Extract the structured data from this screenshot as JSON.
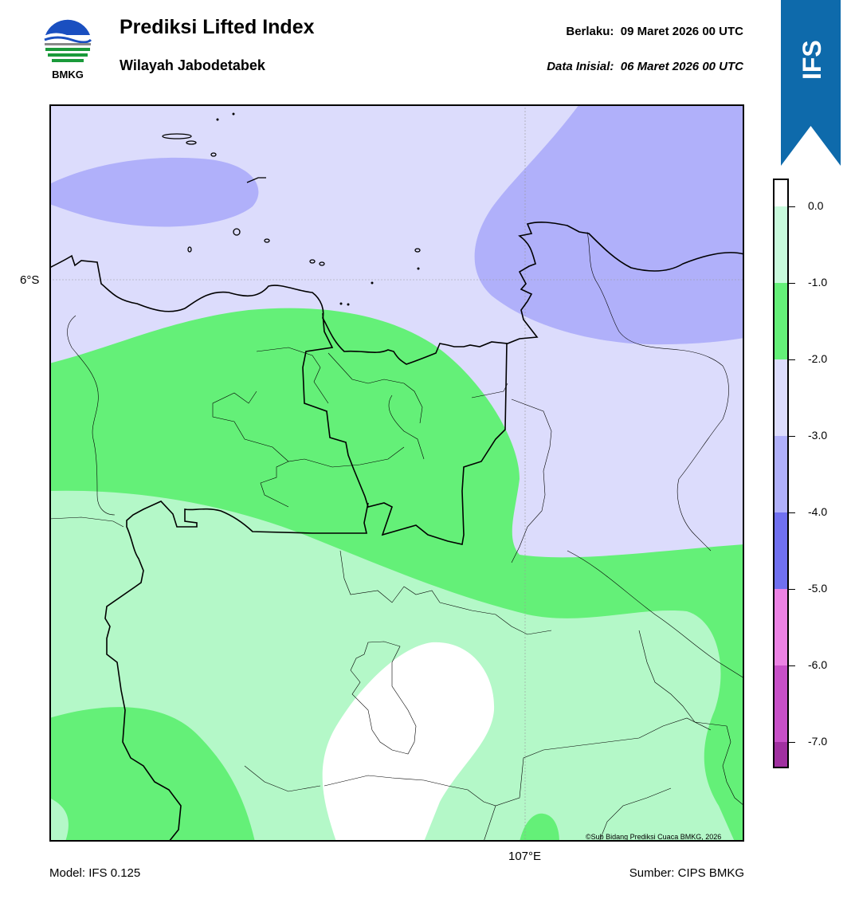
{
  "header": {
    "title": "Prediksi Lifted Index",
    "subtitle": "Wilayah Jabodetabek",
    "valid_label": "Berlaku:",
    "valid_value": "09 Maret 2026 00 UTC",
    "init_label": "Data Inisial:",
    "init_value": "06 Maret 2026 00 UTC",
    "logo_text": "BMKG",
    "ribbon_text": "IFS"
  },
  "map": {
    "lat_label": "6°S",
    "lon_label": "107°E",
    "copyright": "©Sub Bidang Prediksi Cuaca BMKG, 2026",
    "colors": {
      "zero_to_minus1": "#b4f8c8",
      "minus1_to_minus2": "#64f078",
      "minus2_to_minus3": "#dcdcfc",
      "minus3_to_minus4": "#b0b0fa",
      "above_zero": "#ffffff"
    }
  },
  "colorbar": {
    "labels": [
      "0.0",
      "-1.0",
      "-2.0",
      "-3.0",
      "-4.0",
      "-5.0",
      "-6.0",
      "-7.0"
    ],
    "colors": [
      "#ffffff",
      "#c8fadc",
      "#64f078",
      "#dcdcfc",
      "#b0b0fa",
      "#7070f0",
      "#ec82e4",
      "#c850c8",
      "#a030a0",
      "#7a1a7a"
    ]
  },
  "footer": {
    "model": "Model: IFS 0.125",
    "source": "Sumber: CIPS BMKG"
  }
}
